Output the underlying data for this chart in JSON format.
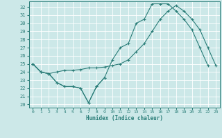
{
  "xlabel": "Humidex (Indice chaleur)",
  "xlim": [
    -0.5,
    23.5
  ],
  "ylim": [
    19.6,
    32.7
  ],
  "yticks": [
    20,
    21,
    22,
    23,
    24,
    25,
    26,
    27,
    28,
    29,
    30,
    31,
    32
  ],
  "xticks": [
    0,
    1,
    2,
    3,
    4,
    5,
    6,
    7,
    8,
    9,
    10,
    11,
    12,
    13,
    14,
    15,
    16,
    17,
    18,
    19,
    20,
    21,
    22,
    23
  ],
  "line_color": "#2a7d78",
  "bg_color": "#cce8e8",
  "grid_color": "#ffffff",
  "line1_x": [
    0,
    1,
    2,
    3,
    4,
    5,
    6,
    7,
    8,
    9
  ],
  "line1_y": [
    25.0,
    24.0,
    23.8,
    22.7,
    22.2,
    22.2,
    22.0,
    20.2,
    22.2,
    23.3
  ],
  "line2_x": [
    0,
    1,
    2,
    3,
    4,
    5,
    6,
    7,
    8,
    9,
    10,
    11,
    12,
    13,
    14,
    15,
    16,
    17,
    18,
    19,
    20,
    21,
    22,
    23
  ],
  "line2_y": [
    25.0,
    24.0,
    23.8,
    24.0,
    24.2,
    24.2,
    24.3,
    24.5,
    24.5,
    24.6,
    24.8,
    25.0,
    25.5,
    26.5,
    27.5,
    29.0,
    30.5,
    31.5,
    32.2,
    31.5,
    30.5,
    29.2,
    27.0,
    24.8
  ],
  "line3_x": [
    0,
    1,
    2,
    3,
    4,
    5,
    6,
    7,
    8,
    9,
    10,
    11,
    12,
    13,
    14,
    15,
    16,
    17,
    18,
    19,
    20,
    21,
    22,
    23
  ],
  "line3_y": [
    25.0,
    24.0,
    23.8,
    22.7,
    22.2,
    22.2,
    22.0,
    20.2,
    22.2,
    23.3,
    25.5,
    27.0,
    27.5,
    30.0,
    30.5,
    32.4,
    32.4,
    32.4,
    31.5,
    30.5,
    29.2,
    27.0,
    24.8,
    null
  ]
}
